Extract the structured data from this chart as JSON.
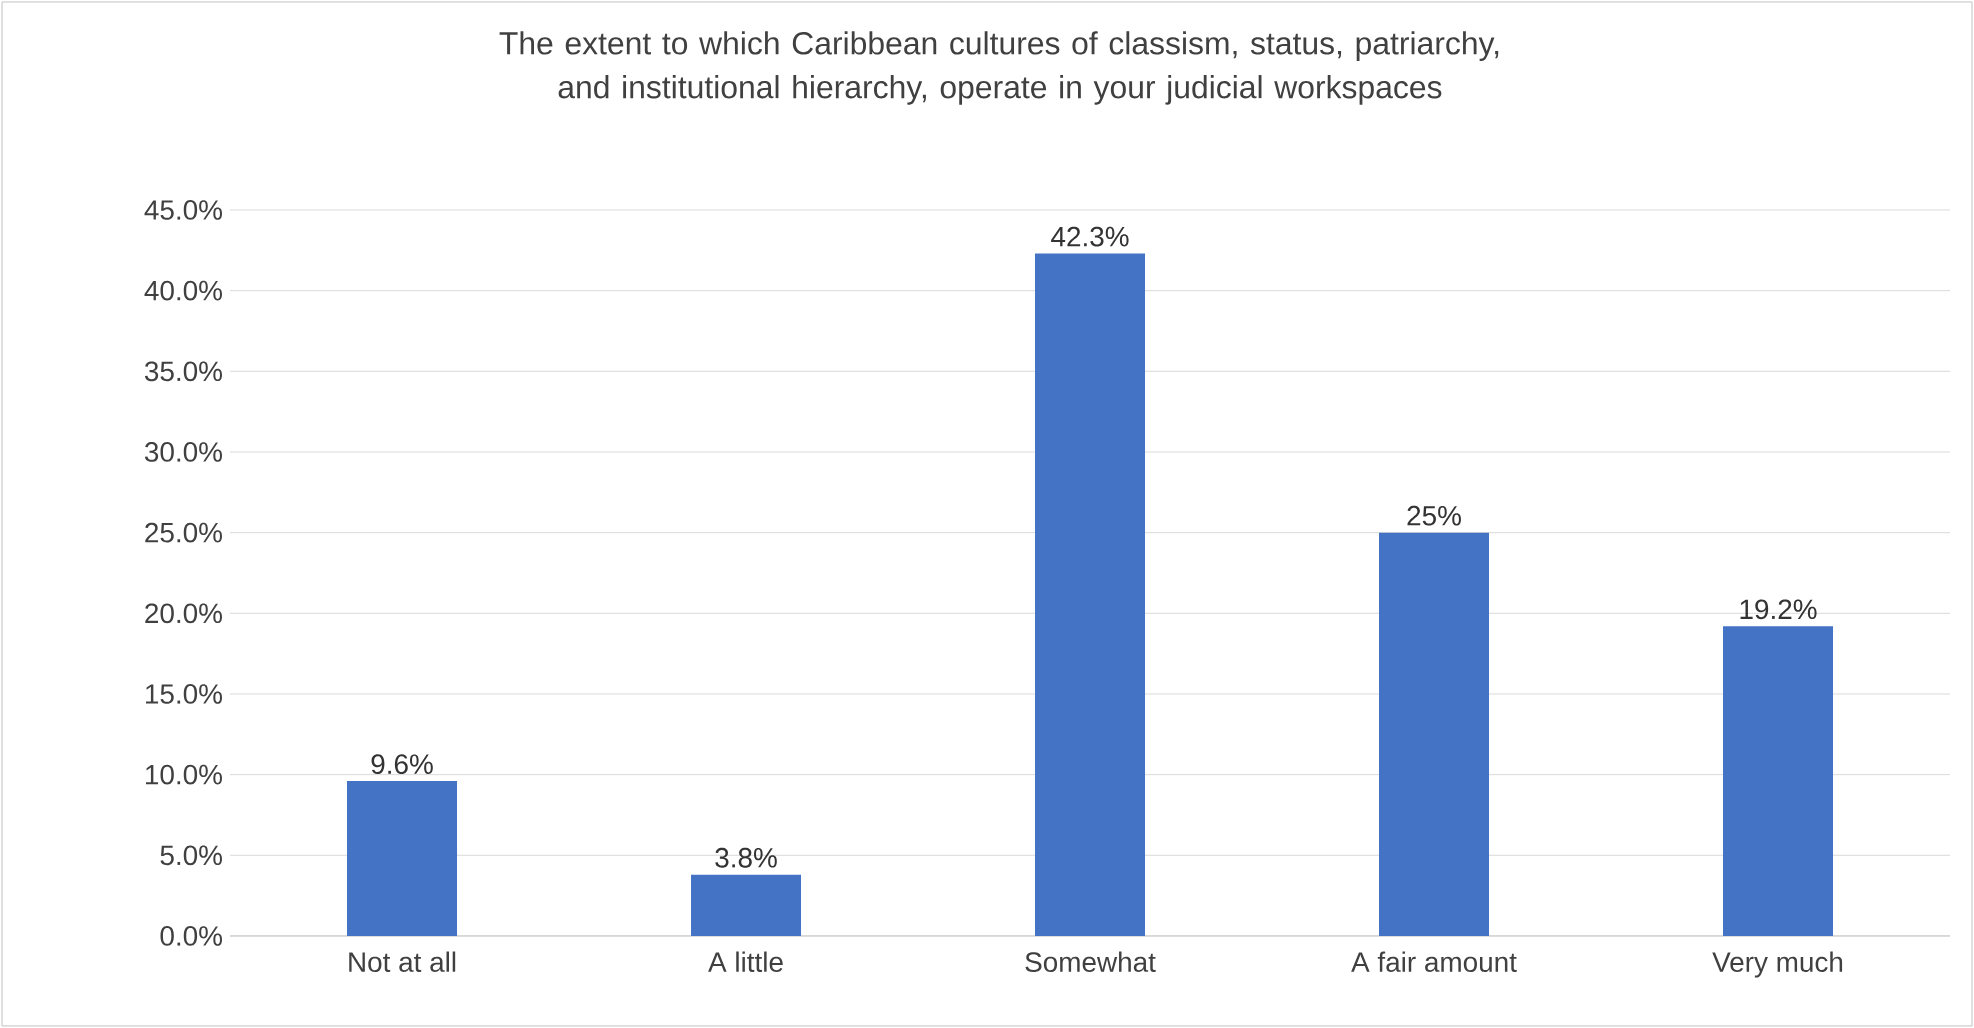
{
  "chart_data": {
    "type": "bar",
    "title": "The extent to which Caribbean cultures of classism, status, patriarchy, and institutional hierarchy, operate in your judicial workspaces",
    "categories": [
      "Not at all",
      "A little",
      "Somewhat",
      "A fair amount",
      "Very much"
    ],
    "values": [
      9.6,
      3.8,
      42.3,
      25,
      19.2
    ],
    "value_labels": [
      "9.6%",
      "3.8%",
      "42.3%",
      "25%",
      "19.2%"
    ],
    "color": "#4472c4",
    "ylim": [
      0,
      45
    ],
    "yticks": [
      {
        "value": 0,
        "label": "0.0%"
      },
      {
        "value": 5,
        "label": "5.0%"
      },
      {
        "value": 10,
        "label": "10.0%"
      },
      {
        "value": 15,
        "label": "15.0%"
      },
      {
        "value": 20,
        "label": "20.0%"
      },
      {
        "value": 25,
        "label": "25.0%"
      },
      {
        "value": 30,
        "label": "30.0%"
      },
      {
        "value": 35,
        "label": "35.0%"
      },
      {
        "value": 40,
        "label": "40.0%"
      },
      {
        "value": 45,
        "label": "45.0%"
      }
    ],
    "grid": "y"
  }
}
